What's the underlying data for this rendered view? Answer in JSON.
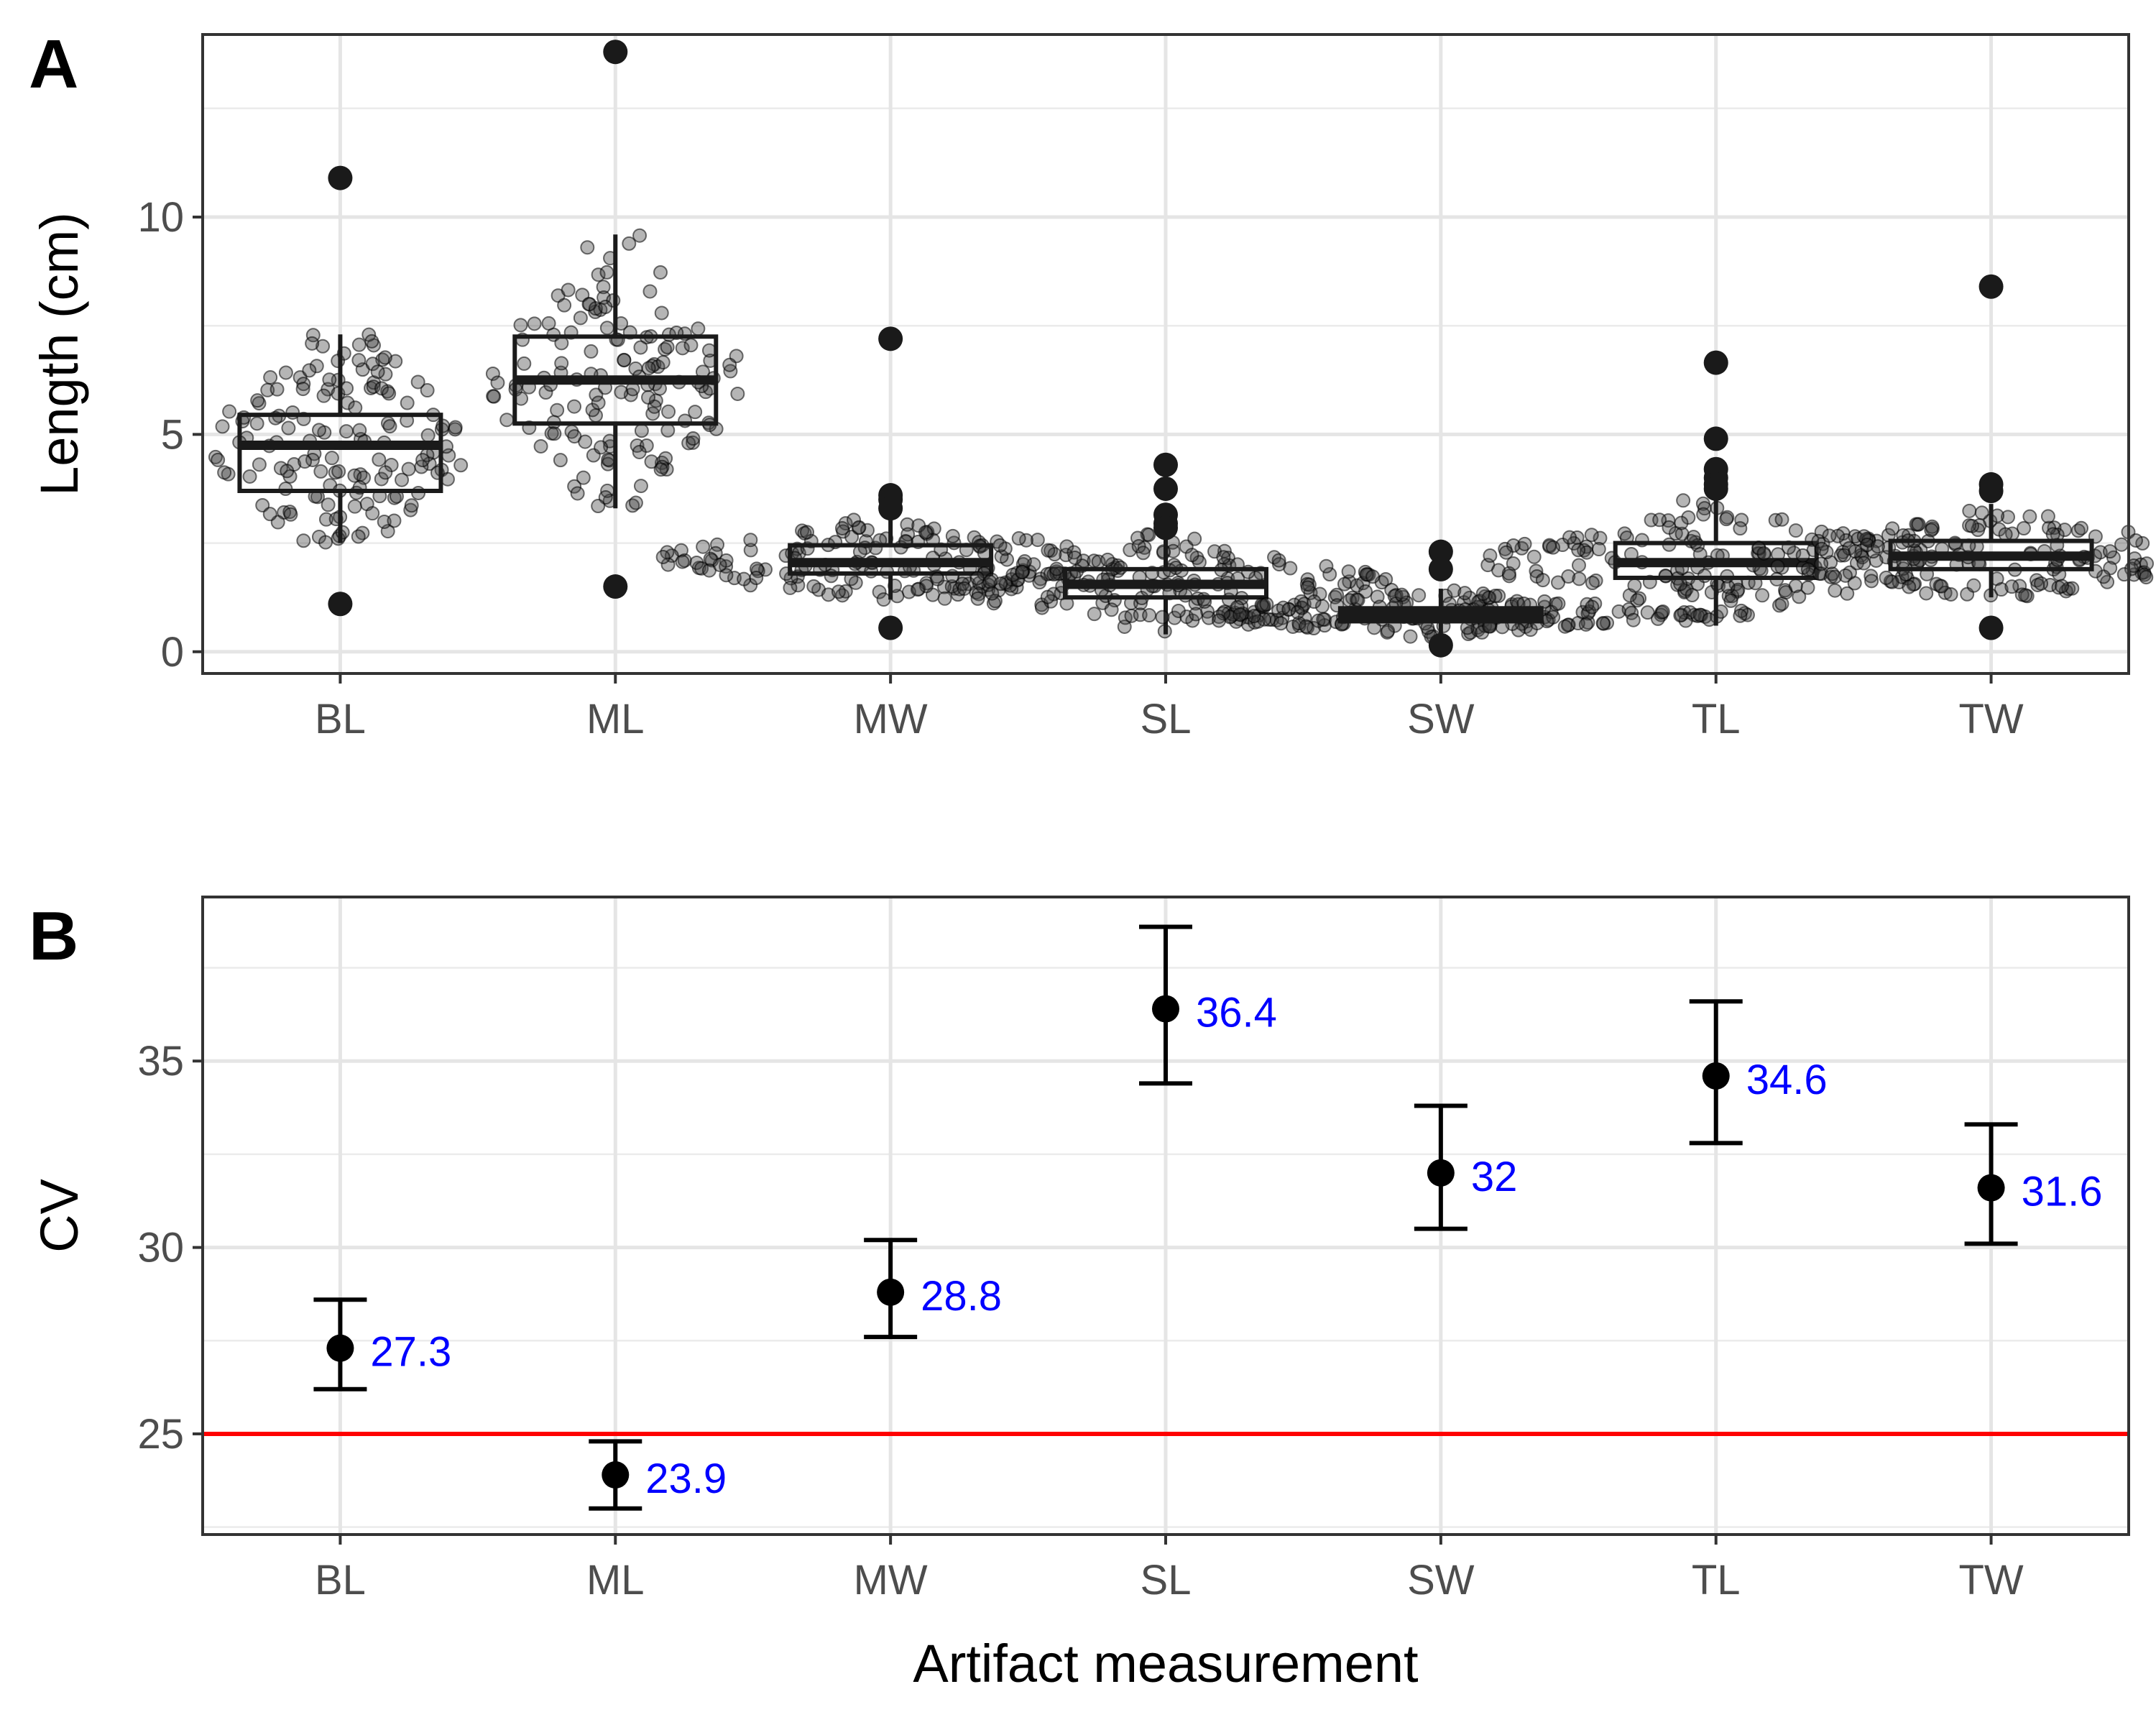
{
  "panels": {
    "a_label": "A",
    "b_label": "B"
  },
  "chart_data": [
    {
      "type": "box",
      "panel": "A",
      "xlabel": "",
      "ylabel": "Length (cm)",
      "ylim": [
        -0.5,
        14.2
      ],
      "yticks": [
        0,
        5,
        10
      ],
      "grid": true,
      "categories": [
        "BL",
        "ML",
        "MW",
        "SL",
        "SW",
        "TL",
        "TW"
      ],
      "boxes": [
        {
          "q1": 3.7,
          "median": 4.75,
          "q3": 5.45,
          "whisker_low": 2.5,
          "whisker_high": 7.3,
          "outliers": [
            10.9,
            1.1
          ],
          "points": 150
        },
        {
          "q1": 5.25,
          "median": 6.25,
          "q3": 7.25,
          "whisker_low": 3.3,
          "whisker_high": 9.6,
          "outliers": [
            13.8,
            1.5
          ],
          "points": 150
        },
        {
          "q1": 1.8,
          "median": 2.05,
          "q3": 2.45,
          "whisker_low": 1.2,
          "whisker_high": 3.2,
          "outliers": [
            7.2,
            3.6,
            3.5,
            3.3,
            0.55
          ],
          "points": 170
        },
        {
          "q1": 1.25,
          "median": 1.55,
          "q3": 1.9,
          "whisker_low": 0.4,
          "whisker_high": 2.7,
          "outliers": [
            4.3,
            3.75,
            3.15,
            2.95,
            2.85
          ],
          "points": 170
        },
        {
          "q1": 0.7,
          "median": 0.85,
          "q3": 1.0,
          "whisker_low": 0.3,
          "whisker_high": 1.45,
          "outliers": [
            2.3,
            1.9,
            0.15
          ],
          "points": 200
        },
        {
          "q1": 1.7,
          "median": 2.05,
          "q3": 2.5,
          "whisker_low": 0.6,
          "whisker_high": 3.6,
          "outliers": [
            6.65,
            4.9,
            4.2,
            4.0,
            3.85,
            3.75
          ],
          "points": 170
        },
        {
          "q1": 1.9,
          "median": 2.2,
          "q3": 2.55,
          "whisker_low": 1.25,
          "whisker_high": 3.4,
          "outliers": [
            8.4,
            3.85,
            3.7,
            0.55
          ],
          "points": 170
        }
      ]
    },
    {
      "type": "scatter",
      "panel": "B",
      "xlabel": "Artifact measurement",
      "ylabel": "CV",
      "ylim": [
        22.3,
        39.4
      ],
      "yticks": [
        25,
        30,
        35
      ],
      "grid": true,
      "reference_line": {
        "y": 25,
        "color": "#ff0000"
      },
      "categories": [
        "BL",
        "ML",
        "MW",
        "SL",
        "SW",
        "TL",
        "TW"
      ],
      "values": [
        27.3,
        23.9,
        28.8,
        36.4,
        32,
        34.6,
        31.6
      ],
      "labels": [
        "27.3",
        "23.9",
        "28.8",
        "36.4",
        "32",
        "34.6",
        "31.6"
      ],
      "error_low": [
        26.2,
        23.0,
        27.6,
        34.4,
        30.5,
        32.8,
        30.1
      ],
      "error_high": [
        28.6,
        24.8,
        30.2,
        38.6,
        33.8,
        36.6,
        33.3
      ]
    }
  ]
}
